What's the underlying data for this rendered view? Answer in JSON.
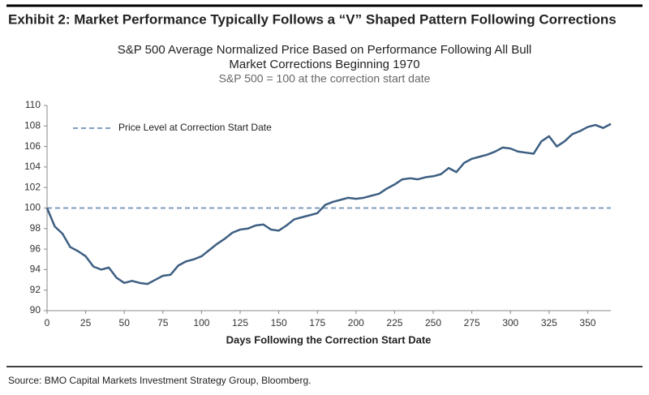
{
  "header": "Exhibit 2: Market Performance Typically Follows a “V” Shaped Pattern Following Corrections",
  "source": "Source: BMO Capital Markets Investment Strategy Group, Bloomberg.",
  "chart_data": {
    "type": "line",
    "title": [
      "S&P 500 Average Normalized Price Based on Performance Following All Bull",
      "Market Corrections Beginning 1970"
    ],
    "subtitle": "S&P 500 = 100 at the correction start date",
    "x_label": "Days Following the Correction Start Date",
    "x": [
      0,
      5,
      10,
      15,
      20,
      25,
      30,
      35,
      40,
      45,
      50,
      55,
      60,
      65,
      70,
      75,
      80,
      85,
      90,
      95,
      100,
      105,
      110,
      115,
      120,
      125,
      130,
      135,
      140,
      145,
      150,
      155,
      160,
      165,
      170,
      175,
      180,
      185,
      190,
      195,
      200,
      205,
      210,
      215,
      220,
      225,
      230,
      235,
      240,
      245,
      250,
      255,
      260,
      265,
      270,
      275,
      280,
      285,
      290,
      295,
      300,
      305,
      310,
      315,
      320,
      325,
      330,
      335,
      340,
      345,
      350,
      355,
      360,
      365
    ],
    "series": [
      {
        "color": "#3d5f82",
        "values": [
          100,
          98.2,
          97.5,
          96.2,
          95.8,
          95.3,
          94.3,
          94.0,
          94.2,
          93.2,
          92.7,
          92.9,
          92.7,
          92.6,
          93.0,
          93.4,
          93.5,
          94.4,
          94.8,
          95.0,
          95.3,
          95.9,
          96.5,
          97.0,
          97.6,
          97.9,
          98.0,
          98.3,
          98.4,
          97.9,
          97.8,
          98.3,
          98.9,
          99.1,
          99.3,
          99.5,
          100.3,
          100.6,
          100.8,
          101.0,
          100.9,
          101.0,
          101.2,
          101.4,
          101.9,
          102.3,
          102.8,
          102.9,
          102.8,
          103.0,
          103.1,
          103.3,
          103.9,
          103.5,
          104.4,
          104.8,
          105.0,
          105.2,
          105.5,
          105.9,
          105.8,
          105.5,
          105.4,
          105.3,
          106.5,
          107.0,
          106.0,
          106.5,
          107.2,
          107.5,
          107.9,
          108.1,
          107.8,
          108.2
        ]
      }
    ],
    "reference_line": {
      "name": "Price Level at Correction Start Date",
      "value": 100,
      "color": "#7f9dbd"
    },
    "xlim": [
      0,
      365
    ],
    "xticks": [
      0,
      25,
      50,
      75,
      100,
      125,
      150,
      175,
      200,
      225,
      250,
      275,
      300,
      325,
      350
    ],
    "ylim": [
      90,
      110
    ],
    "yticks": [
      90,
      92,
      94,
      96,
      98,
      100,
      102,
      104,
      106,
      108,
      110
    ],
    "grid": false
  }
}
